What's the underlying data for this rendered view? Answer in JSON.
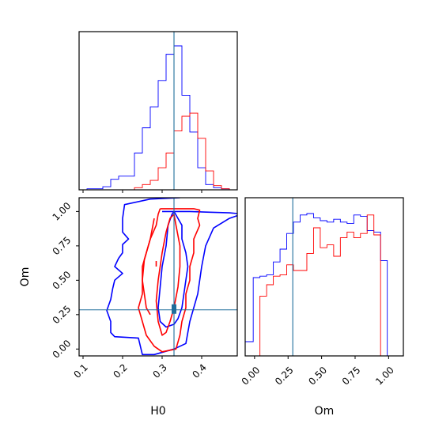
{
  "colors": {
    "series_a": "#0000ff",
    "series_b": "#ff0000",
    "truth": "#1f6e9b"
  },
  "chart_data": [
    {
      "type": "histogram",
      "panel": "H0 marginal",
      "xlim": [
        0.09,
        0.49
      ],
      "bin_edges": [
        0.09,
        0.11,
        0.13,
        0.15,
        0.17,
        0.19,
        0.21,
        0.23,
        0.25,
        0.27,
        0.29,
        0.31,
        0.33,
        0.35,
        0.37,
        0.39,
        0.41,
        0.43,
        0.45,
        0.47,
        0.49
      ],
      "series": [
        {
          "color_key": "series_a",
          "counts": [
            0,
            1,
            1,
            3,
            10,
            13,
            13,
            35,
            59,
            79,
            104,
            129,
            137,
            90,
            55,
            21,
            5,
            2,
            1,
            0
          ]
        },
        {
          "color_key": "series_b",
          "counts": [
            0,
            0,
            0,
            0,
            0,
            0,
            0,
            2,
            5,
            9,
            21,
            35,
            56,
            70,
            73,
            49,
            18,
            4,
            1,
            0
          ]
        }
      ],
      "truth_x": 0.33,
      "tick_values": [
        0.1,
        0.2,
        0.3,
        0.4
      ]
    },
    {
      "type": "contour",
      "panel": "H0 vs Om",
      "xlabel": "H0",
      "ylabel": "Om",
      "xlim": [
        0.09,
        0.49
      ],
      "ylim": [
        -0.05,
        1.1
      ],
      "xticks": [
        "0.1",
        "0.2",
        "0.3",
        "0.4"
      ],
      "yticks": [
        "0.00",
        "0.25",
        "0.50",
        "0.75",
        "1.00"
      ],
      "xtick_values": [
        0.1,
        0.2,
        0.3,
        0.4
      ],
      "ytick_values": [
        0.0,
        0.25,
        0.5,
        0.75,
        1.0
      ],
      "truth": [
        0.33,
        0.285
      ],
      "contours": [
        {
          "color_key": "series_a",
          "level": "outer",
          "points": [
            [
              0.345,
              1.1
            ],
            [
              0.27,
              1.09
            ],
            [
              0.205,
              1.05
            ],
            [
              0.2,
              0.95
            ],
            [
              0.2,
              0.85
            ],
            [
              0.215,
              0.8
            ],
            [
              0.2,
              0.76
            ],
            [
              0.2,
              0.7
            ],
            [
              0.19,
              0.66
            ],
            [
              0.18,
              0.6
            ],
            [
              0.2,
              0.55
            ],
            [
              0.18,
              0.5
            ],
            [
              0.175,
              0.44
            ],
            [
              0.17,
              0.36
            ],
            [
              0.16,
              0.28
            ],
            [
              0.17,
              0.2
            ],
            [
              0.17,
              0.12
            ],
            [
              0.18,
              0.09
            ],
            [
              0.24,
              0.08
            ],
            [
              0.25,
              -0.04
            ],
            [
              0.28,
              -0.04
            ],
            [
              0.33,
              0.0
            ],
            [
              0.36,
              0.04
            ],
            [
              0.37,
              0.2
            ],
            [
              0.39,
              0.4
            ],
            [
              0.4,
              0.6
            ],
            [
              0.41,
              0.75
            ],
            [
              0.43,
              0.88
            ],
            [
              0.47,
              0.95
            ],
            [
              0.49,
              0.97
            ]
          ]
        },
        {
          "color_key": "series_a",
          "level": "inner",
          "points": [
            [
              0.33,
              1.0
            ],
            [
              0.34,
              0.95
            ],
            [
              0.35,
              0.9
            ],
            [
              0.35,
              0.8
            ],
            [
              0.36,
              0.7
            ],
            [
              0.365,
              0.6
            ],
            [
              0.36,
              0.5
            ],
            [
              0.355,
              0.4
            ],
            [
              0.35,
              0.3
            ],
            [
              0.34,
              0.22
            ],
            [
              0.33,
              0.18
            ],
            [
              0.31,
              0.16
            ],
            [
              0.295,
              0.2
            ],
            [
              0.29,
              0.3
            ],
            [
              0.295,
              0.45
            ],
            [
              0.3,
              0.6
            ],
            [
              0.31,
              0.75
            ],
            [
              0.315,
              0.9
            ],
            [
              0.325,
              0.98
            ],
            [
              0.33,
              1.0
            ]
          ]
        },
        {
          "color_key": "series_a",
          "level": "top",
          "points": [
            [
              0.3,
              1.0
            ],
            [
              0.37,
              1.0
            ],
            [
              0.42,
              0.995
            ],
            [
              0.47,
              0.99
            ],
            [
              0.49,
              0.985
            ]
          ]
        },
        {
          "color_key": "series_b",
          "level": "outer",
          "points": [
            [
              0.295,
              1.02
            ],
            [
              0.35,
              1.02
            ],
            [
              0.38,
              1.02
            ],
            [
              0.395,
              1.01
            ],
            [
              0.39,
              0.95
            ],
            [
              0.395,
              0.9
            ],
            [
              0.38,
              0.8
            ],
            [
              0.38,
              0.7
            ],
            [
              0.37,
              0.6
            ],
            [
              0.37,
              0.5
            ],
            [
              0.36,
              0.4
            ],
            [
              0.36,
              0.3
            ],
            [
              0.35,
              0.2
            ],
            [
              0.345,
              0.1
            ],
            [
              0.335,
              0.0
            ],
            [
              0.3,
              -0.02
            ],
            [
              0.28,
              0.02
            ],
            [
              0.26,
              0.1
            ],
            [
              0.25,
              0.2
            ],
            [
              0.24,
              0.3
            ],
            [
              0.25,
              0.4
            ],
            [
              0.25,
              0.5
            ],
            [
              0.25,
              0.6
            ],
            [
              0.26,
              0.7
            ],
            [
              0.27,
              0.8
            ],
            [
              0.285,
              0.9
            ],
            [
              0.29,
              0.98
            ],
            [
              0.295,
              1.02
            ]
          ]
        },
        {
          "color_key": "series_b",
          "level": "inner",
          "points": [
            [
              0.33,
              0.98
            ],
            [
              0.335,
              0.9
            ],
            [
              0.345,
              0.75
            ],
            [
              0.345,
              0.6
            ],
            [
              0.34,
              0.45
            ],
            [
              0.33,
              0.3
            ],
            [
              0.32,
              0.2
            ],
            [
              0.31,
              0.12
            ],
            [
              0.3,
              0.1
            ],
            [
              0.29,
              0.2
            ],
            [
              0.285,
              0.35
            ],
            [
              0.29,
              0.5
            ],
            [
              0.3,
              0.7
            ],
            [
              0.31,
              0.85
            ],
            [
              0.32,
              0.95
            ],
            [
              0.33,
              0.98
            ]
          ]
        },
        {
          "color_key": "series_b",
          "level": "left",
          "points": [
            [
              0.28,
              0.95
            ],
            [
              0.27,
              0.8
            ],
            [
              0.255,
              0.65
            ],
            [
              0.25,
              0.5
            ],
            [
              0.255,
              0.4
            ],
            [
              0.26,
              0.3
            ],
            [
              0.27,
              0.25
            ]
          ]
        },
        {
          "color_key": "series_b",
          "level": "mark",
          "points": [
            [
              0.285,
              0.64
            ],
            [
              0.285,
              0.6
            ]
          ]
        }
      ]
    },
    {
      "type": "histogram",
      "panel": "Om marginal",
      "xlabel": "Om",
      "xlim": [
        -0.07,
        1.11
      ],
      "xticks": [
        "0.00",
        "0.25",
        "0.50",
        "0.75",
        "1.00"
      ],
      "xtick_values": [
        0.0,
        0.25,
        0.5,
        0.75,
        1.0
      ],
      "bin_edges": [
        -0.07,
        -0.01,
        0.04,
        0.09,
        0.14,
        0.19,
        0.24,
        0.29,
        0.34,
        0.39,
        0.44,
        0.49,
        0.54,
        0.59,
        0.64,
        0.69,
        0.74,
        0.79,
        0.84,
        0.89,
        0.94,
        0.99,
        1.04,
        1.11
      ],
      "series": [
        {
          "color_key": "series_a",
          "counts": [
            0.1,
            0.55,
            0.56,
            0.57,
            0.66,
            0.75,
            0.86,
            0.94,
            0.99,
            1.0,
            0.97,
            0.95,
            0.94,
            0.96,
            0.94,
            0.93,
            0.99,
            0.98,
            0.88,
            0.87,
            0.67,
            0.0,
            0.0
          ]
        },
        {
          "color_key": "series_b",
          "counts": [
            0.0,
            0.0,
            0.42,
            0.5,
            0.56,
            0.57,
            0.64,
            0.6,
            0.6,
            0.72,
            0.9,
            0.76,
            0.78,
            0.7,
            0.83,
            0.87,
            0.83,
            0.86,
            0.99,
            0.85,
            0.0,
            0.0,
            0.0
          ]
        }
      ],
      "truth_x": 0.285
    }
  ]
}
